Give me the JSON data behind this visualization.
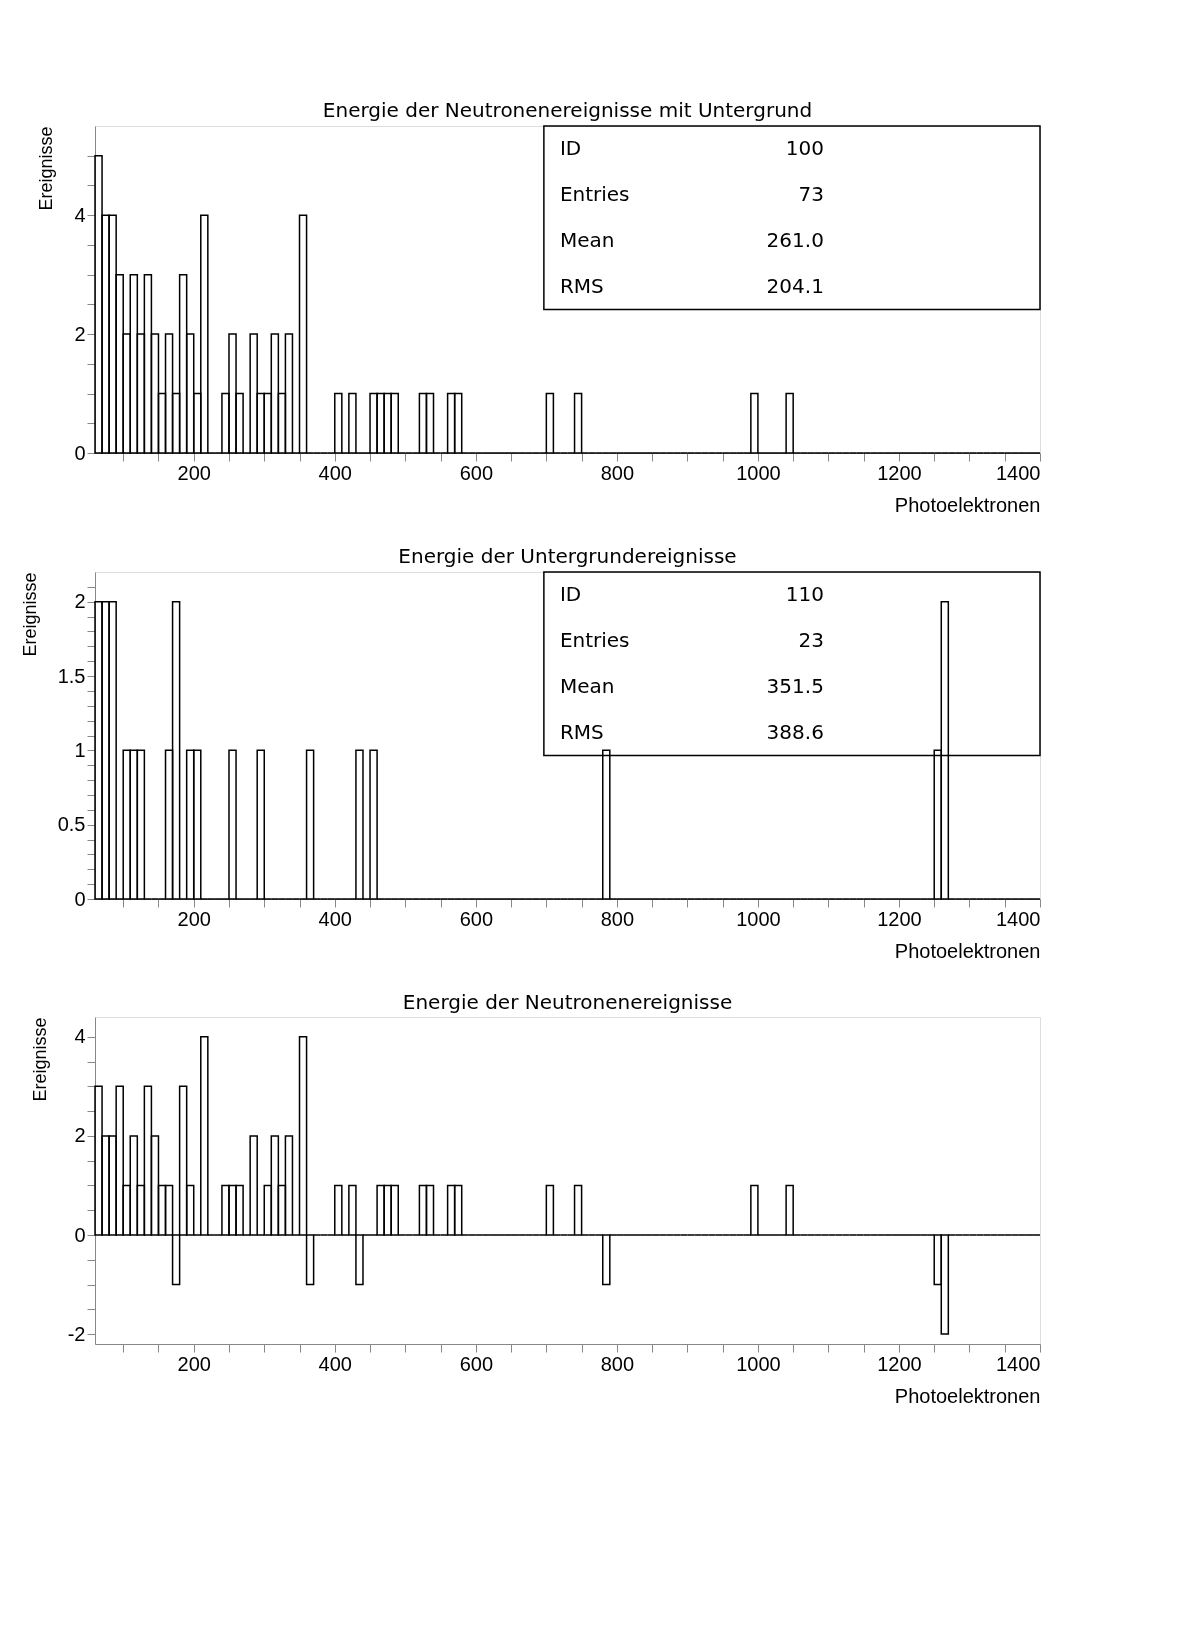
{
  "chart_data": [
    {
      "type": "histogram",
      "title": "Energie der Neutronenereignisse mit Untergrund",
      "xlabel": "Photoelektronen",
      "ylabel": "Ereignisse",
      "color": "#000000",
      "bins": [
        60,
        70,
        80,
        90,
        100,
        110,
        120,
        130,
        140,
        150,
        160,
        170,
        180,
        190,
        200,
        210,
        220,
        230,
        240,
        250,
        260,
        270,
        280,
        290,
        300,
        310,
        320,
        330,
        340,
        350,
        360,
        370,
        380,
        390,
        400,
        410,
        420,
        430,
        440,
        450,
        460,
        470,
        480,
        490,
        500,
        510,
        520,
        530,
        540,
        550,
        560,
        570,
        580,
        590,
        600,
        610,
        620,
        630,
        640,
        650,
        660,
        670,
        680,
        690,
        700,
        710,
        720,
        730,
        740,
        750,
        760,
        770,
        780,
        790,
        800,
        810,
        820,
        830,
        840,
        850,
        860,
        870,
        880,
        890,
        900,
        910,
        920,
        930,
        940,
        950,
        960,
        970,
        980,
        990,
        1000,
        1010,
        1020,
        1030,
        1040,
        1050,
        1060,
        1070,
        1080,
        1090,
        1100,
        1110,
        1120,
        1130,
        1140,
        1150,
        1160,
        1170,
        1180,
        1190,
        1200,
        1210,
        1220,
        1230,
        1240,
        1250,
        1260,
        1270,
        1280,
        1290,
        1300,
        1310,
        1320,
        1330,
        1340,
        1350,
        1360,
        1370,
        1380,
        1390,
        1400
      ],
      "values": [
        5,
        4,
        4,
        3,
        2,
        3,
        2,
        3,
        2,
        1,
        2,
        1,
        3,
        2,
        1,
        4,
        0,
        0,
        1,
        2,
        1,
        0,
        2,
        1,
        1,
        2,
        1,
        2,
        0,
        4,
        0,
        0,
        0,
        0,
        1,
        0,
        1,
        0,
        0,
        1,
        1,
        1,
        1,
        0,
        0,
        0,
        1,
        1,
        0,
        0,
        1,
        1,
        0,
        0,
        0,
        0,
        0,
        0,
        0,
        0,
        0,
        0,
        0,
        0,
        1,
        0,
        0,
        0,
        1,
        0,
        0,
        0,
        0,
        0,
        0,
        0,
        0,
        0,
        0,
        0,
        0,
        0,
        0,
        0,
        0,
        0,
        0,
        0,
        0,
        0,
        0,
        0,
        0,
        1,
        0,
        0,
        0,
        0,
        1,
        0,
        0,
        0,
        0,
        0,
        0,
        0,
        0,
        0,
        0,
        0,
        0,
        0,
        0,
        0,
        0,
        0,
        0,
        0,
        0,
        0,
        0,
        0,
        0,
        0,
        0,
        0,
        0,
        0,
        0,
        0,
        0,
        0,
        0,
        0
      ],
      "xlim": [
        60,
        1400
      ],
      "xticks": [
        {
          "value": 100,
          "label": null
        },
        {
          "value": 150,
          "label": null
        },
        200,
        {
          "value": 250,
          "label": null
        },
        {
          "value": 300,
          "label": null
        },
        {
          "value": 350,
          "label": null
        },
        400,
        {
          "value": 450,
          "label": null
        },
        {
          "value": 500,
          "label": null
        },
        {
          "value": 550,
          "label": null
        },
        600,
        {
          "value": 650,
          "label": null
        },
        {
          "value": 700,
          "label": null
        },
        {
          "value": 750,
          "label": null
        },
        800,
        {
          "value": 850,
          "label": null
        },
        {
          "value": 900,
          "label": null
        },
        {
          "value": 950,
          "label": null
        },
        1000,
        {
          "value": 1050,
          "label": null
        },
        {
          "value": 1100,
          "label": null
        },
        {
          "value": 1150,
          "label": null
        },
        1200,
        {
          "value": 1250,
          "label": null
        },
        {
          "value": 1300,
          "label": null
        },
        {
          "value": 1350,
          "label": null
        },
        1400
      ],
      "ylim": [
        0,
        5.5
      ],
      "yticks": [
        0,
        {
          "value": 0.5,
          "label": null
        },
        {
          "value": 1,
          "label": null
        },
        {
          "value": 1.5,
          "label": null
        },
        2,
        {
          "value": 2.5,
          "label": null
        },
        {
          "value": 3,
          "label": null
        },
        {
          "value": 3.5,
          "label": null
        },
        4,
        {
          "value": 4.5,
          "label": null
        },
        {
          "value": 5,
          "label": null
        }
      ],
      "annotations": [
        "ID",
        "100",
        "Entries",
        "73",
        "Mean",
        "261.0",
        "RMS",
        "204.1"
      ]
    },
    {
      "type": "histogram",
      "title": "Energie der Untergrundereignisse",
      "xlabel": "Photoelektronen",
      "ylabel": "Ereignisse",
      "color": "#000000",
      "bins": [
        60,
        70,
        80,
        90,
        100,
        110,
        120,
        130,
        140,
        150,
        160,
        170,
        180,
        190,
        200,
        210,
        220,
        230,
        240,
        250,
        260,
        270,
        280,
        290,
        300,
        310,
        320,
        330,
        340,
        350,
        360,
        370,
        380,
        390,
        400,
        410,
        420,
        430,
        440,
        450,
        460,
        470,
        480,
        490,
        500,
        510,
        520,
        530,
        540,
        550,
        560,
        570,
        580,
        590,
        600,
        610,
        620,
        630,
        640,
        650,
        660,
        670,
        680,
        690,
        700,
        710,
        720,
        730,
        740,
        750,
        760,
        770,
        780,
        790,
        800,
        810,
        820,
        830,
        840,
        850,
        860,
        870,
        880,
        890,
        900,
        910,
        920,
        930,
        940,
        950,
        960,
        970,
        980,
        990,
        1000,
        1010,
        1020,
        1030,
        1040,
        1050,
        1060,
        1070,
        1080,
        1090,
        1100,
        1110,
        1120,
        1130,
        1140,
        1150,
        1160,
        1170,
        1180,
        1190,
        1200,
        1210,
        1220,
        1230,
        1240,
        1250,
        1260,
        1270,
        1280,
        1290,
        1300,
        1310,
        1320,
        1330,
        1340,
        1350,
        1360,
        1370,
        1380,
        1390,
        1400
      ],
      "values": [
        2,
        2,
        2,
        0,
        1,
        1,
        1,
        0,
        0,
        0,
        1,
        2,
        0,
        1,
        1,
        0,
        0,
        0,
        0,
        1,
        0,
        0,
        0,
        1,
        0,
        0,
        0,
        0,
        0,
        0,
        1,
        0,
        0,
        0,
        0,
        0,
        0,
        1,
        0,
        1,
        0,
        0,
        0,
        0,
        0,
        0,
        0,
        0,
        0,
        0,
        0,
        0,
        0,
        0,
        0,
        0,
        0,
        0,
        0,
        0,
        0,
        0,
        0,
        0,
        0,
        0,
        0,
        0,
        0,
        0,
        0,
        0,
        1,
        0,
        0,
        0,
        0,
        0,
        0,
        0,
        0,
        0,
        0,
        0,
        0,
        0,
        0,
        0,
        0,
        0,
        0,
        0,
        0,
        0,
        0,
        0,
        0,
        0,
        0,
        0,
        0,
        0,
        0,
        0,
        0,
        0,
        0,
        0,
        0,
        0,
        0,
        0,
        0,
        0,
        0,
        0,
        0,
        0,
        0,
        1,
        2,
        0,
        0,
        0,
        0,
        0,
        0,
        0,
        0,
        0,
        0,
        0,
        0,
        0
      ],
      "xlim": [
        60,
        1400
      ],
      "xticks": [
        {
          "value": 100,
          "label": null
        },
        {
          "value": 150,
          "label": null
        },
        200,
        {
          "value": 250,
          "label": null
        },
        {
          "value": 300,
          "label": null
        },
        {
          "value": 350,
          "label": null
        },
        400,
        {
          "value": 450,
          "label": null
        },
        {
          "value": 500,
          "label": null
        },
        {
          "value": 550,
          "label": null
        },
        600,
        {
          "value": 650,
          "label": null
        },
        {
          "value": 700,
          "label": null
        },
        {
          "value": 750,
          "label": null
        },
        800,
        {
          "value": 850,
          "label": null
        },
        {
          "value": 900,
          "label": null
        },
        {
          "value": 950,
          "label": null
        },
        1000,
        {
          "value": 1050,
          "label": null
        },
        {
          "value": 1100,
          "label": null
        },
        {
          "value": 1150,
          "label": null
        },
        1200,
        {
          "value": 1250,
          "label": null
        },
        {
          "value": 1300,
          "label": null
        },
        {
          "value": 1350,
          "label": null
        },
        1400
      ],
      "ylim": [
        0,
        2.2
      ],
      "yticks": [
        0,
        {
          "value": 0.1,
          "label": null
        },
        {
          "value": 0.2,
          "label": null
        },
        {
          "value": 0.3,
          "label": null
        },
        {
          "value": 0.4,
          "label": null
        },
        0.5,
        {
          "value": 0.6,
          "label": null
        },
        {
          "value": 0.7,
          "label": null
        },
        {
          "value": 0.8,
          "label": null
        },
        {
          "value": 0.9,
          "label": null
        },
        1,
        {
          "value": 1.1,
          "label": null
        },
        {
          "value": 1.2,
          "label": null
        },
        {
          "value": 1.3,
          "label": null
        },
        {
          "value": 1.4,
          "label": null
        },
        1.5,
        {
          "value": 1.6,
          "label": null
        },
        {
          "value": 1.7,
          "label": null
        },
        {
          "value": 1.8,
          "label": null
        },
        {
          "value": 1.9,
          "label": null
        },
        2,
        {
          "value": 2.1,
          "label": null
        }
      ],
      "annotations": [
        "ID",
        "110",
        "Entries",
        "23",
        "Mean",
        "351.5",
        "RMS",
        "388.6"
      ]
    },
    {
      "type": "histogram",
      "title": "Energie der Neutronenereignisse",
      "xlabel": "Photoelektronen",
      "ylabel": "Ereignisse",
      "color": "#000000",
      "bins": [
        60,
        70,
        80,
        90,
        100,
        110,
        120,
        130,
        140,
        150,
        160,
        170,
        180,
        190,
        200,
        210,
        220,
        230,
        240,
        250,
        260,
        270,
        280,
        290,
        300,
        310,
        320,
        330,
        340,
        350,
        360,
        370,
        380,
        390,
        400,
        410,
        420,
        430,
        440,
        450,
        460,
        470,
        480,
        490,
        500,
        510,
        520,
        530,
        540,
        550,
        560,
        570,
        580,
        590,
        600,
        610,
        620,
        630,
        640,
        650,
        660,
        670,
        680,
        690,
        700,
        710,
        720,
        730,
        740,
        750,
        760,
        770,
        780,
        790,
        800,
        810,
        820,
        830,
        840,
        850,
        860,
        870,
        880,
        890,
        900,
        910,
        920,
        930,
        940,
        950,
        960,
        970,
        980,
        990,
        1000,
        1010,
        1020,
        1030,
        1040,
        1050,
        1060,
        1070,
        1080,
        1090,
        1100,
        1110,
        1120,
        1130,
        1140,
        1150,
        1160,
        1170,
        1180,
        1190,
        1200,
        1210,
        1220,
        1230,
        1240,
        1250,
        1260,
        1270,
        1280,
        1290,
        1300,
        1310,
        1320,
        1330,
        1340,
        1350,
        1360,
        1370,
        1380,
        1390,
        1400
      ],
      "values": [
        3,
        2,
        2,
        3,
        1,
        2,
        1,
        3,
        2,
        1,
        1,
        -1,
        3,
        1,
        0,
        4,
        0,
        0,
        1,
        1,
        1,
        0,
        2,
        0,
        1,
        2,
        1,
        2,
        0,
        4,
        -1,
        0,
        0,
        0,
        1,
        0,
        1,
        -1,
        0,
        0,
        1,
        1,
        1,
        0,
        0,
        0,
        1,
        1,
        0,
        0,
        1,
        1,
        0,
        0,
        0,
        0,
        0,
        0,
        0,
        0,
        0,
        0,
        0,
        0,
        1,
        0,
        0,
        0,
        1,
        0,
        0,
        0,
        -1,
        0,
        0,
        0,
        0,
        0,
        0,
        0,
        0,
        0,
        0,
        0,
        0,
        0,
        0,
        0,
        0,
        0,
        0,
        0,
        0,
        1,
        0,
        0,
        0,
        0,
        1,
        0,
        0,
        0,
        0,
        0,
        0,
        0,
        0,
        0,
        0,
        0,
        0,
        0,
        0,
        0,
        0,
        0,
        0,
        0,
        0,
        -1,
        -2,
        0,
        0,
        0,
        0,
        0,
        0,
        0,
        0,
        0,
        0,
        0,
        0,
        0
      ],
      "xlim": [
        60,
        1400
      ],
      "xticks": [
        {
          "value": 100,
          "label": null
        },
        {
          "value": 150,
          "label": null
        },
        200,
        {
          "value": 250,
          "label": null
        },
        {
          "value": 300,
          "label": null
        },
        {
          "value": 350,
          "label": null
        },
        400,
        {
          "value": 450,
          "label": null
        },
        {
          "value": 500,
          "label": null
        },
        {
          "value": 550,
          "label": null
        },
        600,
        {
          "value": 650,
          "label": null
        },
        {
          "value": 700,
          "label": null
        },
        {
          "value": 750,
          "label": null
        },
        800,
        {
          "value": 850,
          "label": null
        },
        {
          "value": 900,
          "label": null
        },
        {
          "value": 950,
          "label": null
        },
        1000,
        {
          "value": 1050,
          "label": null
        },
        {
          "value": 1100,
          "label": null
        },
        {
          "value": 1150,
          "label": null
        },
        1200,
        {
          "value": 1250,
          "label": null
        },
        {
          "value": 1300,
          "label": null
        },
        {
          "value": 1350,
          "label": null
        },
        1400
      ],
      "ylim": [
        -2.2,
        4.4
      ],
      "yticks": [
        -2,
        {
          "value": -1.5,
          "label": null
        },
        {
          "value": -1,
          "label": null
        },
        {
          "value": -0.5,
          "label": null
        },
        0,
        {
          "value": 0.5,
          "label": null
        },
        {
          "value": 1,
          "label": null
        },
        {
          "value": 1.5,
          "label": null
        },
        2,
        {
          "value": 2.5,
          "label": null
        },
        {
          "value": 3,
          "label": null
        },
        {
          "value": 3.5,
          "label": null
        },
        4
      ]
    }
  ]
}
